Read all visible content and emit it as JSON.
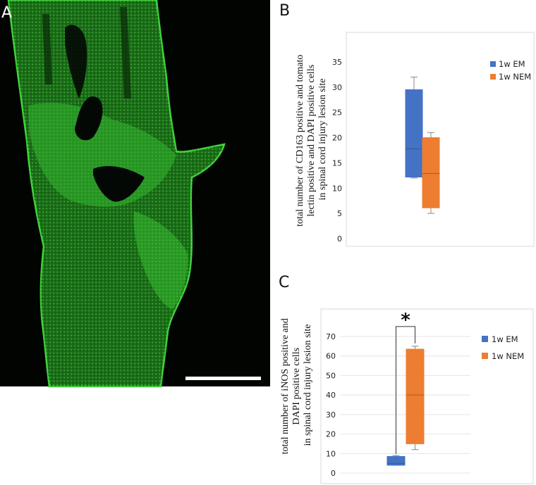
{
  "panels": {
    "a": {
      "letter": "A",
      "scale_bar": true
    },
    "b": {
      "letter": "B"
    },
    "c": {
      "letter": "C"
    }
  },
  "colors": {
    "em": "#4472c4",
    "nem": "#ed7d31",
    "micrograph_bg": "#020402",
    "tissue": "#1e7a1a",
    "tissue_bright": "#3fd13a",
    "scale_bar": "#ffffff",
    "chart_border": "#d9d9d9",
    "gridline": "#e4e4e4"
  },
  "chart_data": [
    {
      "panel": "B",
      "type": "box",
      "ylabel": "total number of CD163 positive and tomato lectin positive and DAPI positive cells in spinal cord injury lesion site",
      "ylabel_lines": [
        "total number of CD163 positive and tomato",
        "lectin positive and DAPI positive cells",
        "in spinal cord injury lesion site"
      ],
      "xlabel": "",
      "ylim": [
        0,
        35
      ],
      "yticks": [
        "0",
        "5",
        "10",
        "15",
        "20",
        "25",
        "30",
        "35"
      ],
      "grid": false,
      "legend_position": "right",
      "series": [
        {
          "name": "1w EM",
          "color_key": "em",
          "min": 12,
          "q1": 12.2,
          "median": 17.8,
          "q3": 29.5,
          "max": 32
        },
        {
          "name": "1w NEM",
          "color_key": "nem",
          "min": 5,
          "q1": 6.1,
          "median": 12.9,
          "q3": 20,
          "max": 21
        }
      ]
    },
    {
      "panel": "C",
      "type": "box",
      "ylabel": "total number of iNOS positive and DAPI positive cells in spinal cord injury lesion site",
      "ylabel_lines": [
        "total number of iNOS positive and",
        "DAPI positive cells",
        "in spinal cord injury lesion site"
      ],
      "xlabel": "",
      "ylim": [
        0,
        70
      ],
      "yticks": [
        "0",
        "10",
        "20",
        "30",
        "40",
        "50",
        "60",
        "70"
      ],
      "grid": true,
      "legend_position": "right",
      "significance": "*",
      "series": [
        {
          "name": "1w EM",
          "color_key": "em",
          "min": 4,
          "q1": 4,
          "median": 5,
          "q3": 8.5,
          "max": 9
        },
        {
          "name": "1w NEM",
          "color_key": "nem",
          "min": 12,
          "q1": 15,
          "median": 40,
          "q3": 63.5,
          "max": 65
        }
      ]
    }
  ]
}
